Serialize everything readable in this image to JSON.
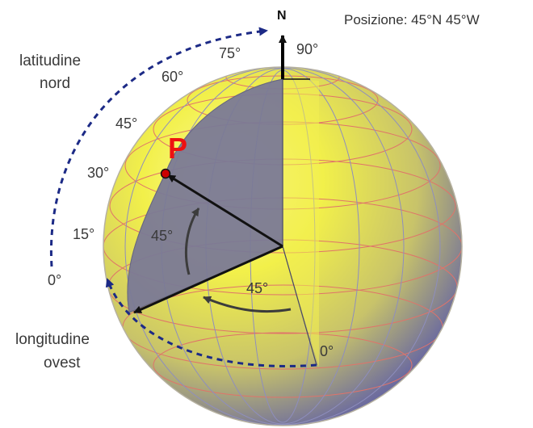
{
  "title": "Posizione: 45°N 45°W",
  "north_label": "N",
  "point_label": "P",
  "latitude": {
    "caption_line1": "latitudine",
    "caption_line2": "nord",
    "ticks": [
      "0°",
      "15°",
      "30°",
      "45°",
      "60°",
      "75°",
      "90°"
    ],
    "angle_label": "45°"
  },
  "longitude": {
    "caption_line1": "longitudine",
    "caption_line2": "ovest",
    "prime_meridian_label": "0°",
    "angle_label": "45°"
  },
  "colors": {
    "globe_fill": "#f2f04a",
    "globe_shade": "#7c7ca8",
    "wedge": "#7b7a96",
    "grid_lat": "#e0736a",
    "grid_lon": "#8e8ebe",
    "dashed_arc": "#1c2a86",
    "point": "#cc0000"
  }
}
